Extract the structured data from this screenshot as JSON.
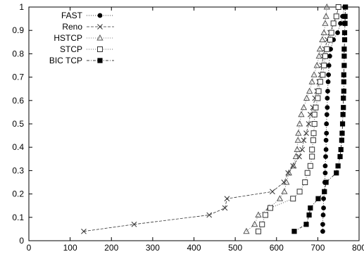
{
  "chart_data": {
    "type": "scatter",
    "title": "",
    "xlabel": "",
    "ylabel": "",
    "xlim": [
      0,
      800
    ],
    "ylim": [
      0,
      1
    ],
    "xticks": [
      0,
      100,
      200,
      300,
      400,
      500,
      600,
      700,
      800
    ],
    "yticks": [
      0,
      0.1,
      0.2,
      0.3,
      0.4,
      0.5,
      0.6,
      0.7,
      0.8,
      0.9,
      1
    ],
    "legend_position": "top-left",
    "grid": false,
    "series": [
      {
        "name": "FAST",
        "marker": "filled-circle",
        "line": "dotted",
        "color": "#000000",
        "points": [
          [
            712,
            0.04
          ],
          [
            712,
            0.07
          ],
          [
            713,
            0.11
          ],
          [
            714,
            0.14
          ],
          [
            714,
            0.18
          ],
          [
            716,
            0.21
          ],
          [
            717,
            0.25
          ],
          [
            718,
            0.29
          ],
          [
            718,
            0.32
          ],
          [
            719,
            0.36
          ],
          [
            720,
            0.39
          ],
          [
            720,
            0.43
          ],
          [
            721,
            0.46
          ],
          [
            721,
            0.5
          ],
          [
            722,
            0.54
          ],
          [
            723,
            0.57
          ],
          [
            723,
            0.61
          ],
          [
            724,
            0.64
          ],
          [
            725,
            0.68
          ],
          [
            726,
            0.71
          ],
          [
            727,
            0.75
          ],
          [
            729,
            0.79
          ],
          [
            731,
            0.82
          ],
          [
            738,
            0.86
          ],
          [
            748,
            0.89
          ],
          [
            755,
            0.93
          ],
          [
            760,
            0.96
          ],
          [
            765,
            1.0
          ]
        ]
      },
      {
        "name": "Reno",
        "marker": "x",
        "line": "dashed",
        "color": "#333333",
        "points": [
          [
            133,
            0.04
          ],
          [
            255,
            0.07
          ],
          [
            437,
            0.11
          ],
          [
            475,
            0.14
          ],
          [
            480,
            0.18
          ],
          [
            590,
            0.21
          ],
          [
            618,
            0.25
          ],
          [
            628,
            0.29
          ],
          [
            640,
            0.32
          ],
          [
            655,
            0.36
          ],
          [
            662,
            0.39
          ],
          [
            666,
            0.43
          ],
          [
            672,
            0.46
          ],
          [
            678,
            0.5
          ],
          [
            682,
            0.54
          ],
          [
            688,
            0.57
          ],
          [
            693,
            0.61
          ],
          [
            698,
            0.64
          ],
          [
            703,
            0.68
          ],
          [
            707,
            0.71
          ],
          [
            710,
            0.75
          ],
          [
            713,
            0.79
          ],
          [
            717,
            0.82
          ],
          [
            723,
            0.86
          ],
          [
            730,
            0.89
          ],
          [
            738,
            0.93
          ],
          [
            745,
            0.96
          ],
          [
            750,
            1.0
          ]
        ]
      },
      {
        "name": "HSTCP",
        "marker": "triangle",
        "line": "dotted",
        "color": "#555555",
        "points": [
          [
            527,
            0.04
          ],
          [
            547,
            0.07
          ],
          [
            556,
            0.11
          ],
          [
            582,
            0.14
          ],
          [
            608,
            0.18
          ],
          [
            619,
            0.21
          ],
          [
            624,
            0.25
          ],
          [
            630,
            0.29
          ],
          [
            641,
            0.32
          ],
          [
            647,
            0.36
          ],
          [
            650,
            0.39
          ],
          [
            652,
            0.43
          ],
          [
            653,
            0.46
          ],
          [
            656,
            0.5
          ],
          [
            660,
            0.54
          ],
          [
            666,
            0.57
          ],
          [
            673,
            0.61
          ],
          [
            680,
            0.64
          ],
          [
            686,
            0.68
          ],
          [
            691,
            0.71
          ],
          [
            698,
            0.75
          ],
          [
            703,
            0.79
          ],
          [
            705,
            0.82
          ],
          [
            711,
            0.86
          ],
          [
            715,
            0.89
          ],
          [
            718,
            0.93
          ],
          [
            720,
            0.96
          ],
          [
            722,
            1.0
          ]
        ]
      },
      {
        "name": "STCP",
        "marker": "open-square",
        "line": "dotted",
        "color": "#333333",
        "points": [
          [
            556,
            0.04
          ],
          [
            565,
            0.07
          ],
          [
            573,
            0.11
          ],
          [
            585,
            0.14
          ],
          [
            640,
            0.18
          ],
          [
            656,
            0.21
          ],
          [
            669,
            0.25
          ],
          [
            675,
            0.29
          ],
          [
            682,
            0.32
          ],
          [
            686,
            0.36
          ],
          [
            686,
            0.39
          ],
          [
            689,
            0.43
          ],
          [
            690,
            0.46
          ],
          [
            692,
            0.5
          ],
          [
            692,
            0.54
          ],
          [
            695,
            0.57
          ],
          [
            700,
            0.61
          ],
          [
            702,
            0.64
          ],
          [
            706,
            0.68
          ],
          [
            712,
            0.71
          ],
          [
            715,
            0.75
          ],
          [
            718,
            0.79
          ],
          [
            722,
            0.82
          ],
          [
            730,
            0.86
          ],
          [
            733,
            0.89
          ],
          [
            738,
            0.93
          ],
          [
            745,
            0.96
          ],
          [
            750,
            1.0
          ]
        ]
      },
      {
        "name": "BIC TCP",
        "marker": "filled-square",
        "line": "dash-dot",
        "color": "#000000",
        "points": [
          [
            643,
            0.04
          ],
          [
            672,
            0.07
          ],
          [
            679,
            0.11
          ],
          [
            682,
            0.14
          ],
          [
            701,
            0.18
          ],
          [
            716,
            0.21
          ],
          [
            720,
            0.25
          ],
          [
            745,
            0.29
          ],
          [
            749,
            0.32
          ],
          [
            754,
            0.36
          ],
          [
            756,
            0.39
          ],
          [
            758,
            0.43
          ],
          [
            759,
            0.46
          ],
          [
            760,
            0.5
          ],
          [
            761,
            0.54
          ],
          [
            762,
            0.57
          ],
          [
            762,
            0.61
          ],
          [
            763,
            0.64
          ],
          [
            763,
            0.68
          ],
          [
            763,
            0.71
          ],
          [
            764,
            0.75
          ],
          [
            764,
            0.79
          ],
          [
            764,
            0.82
          ],
          [
            765,
            0.86
          ],
          [
            765,
            0.89
          ],
          [
            766,
            0.93
          ],
          [
            766,
            0.96
          ],
          [
            767,
            1.0
          ]
        ]
      }
    ]
  }
}
